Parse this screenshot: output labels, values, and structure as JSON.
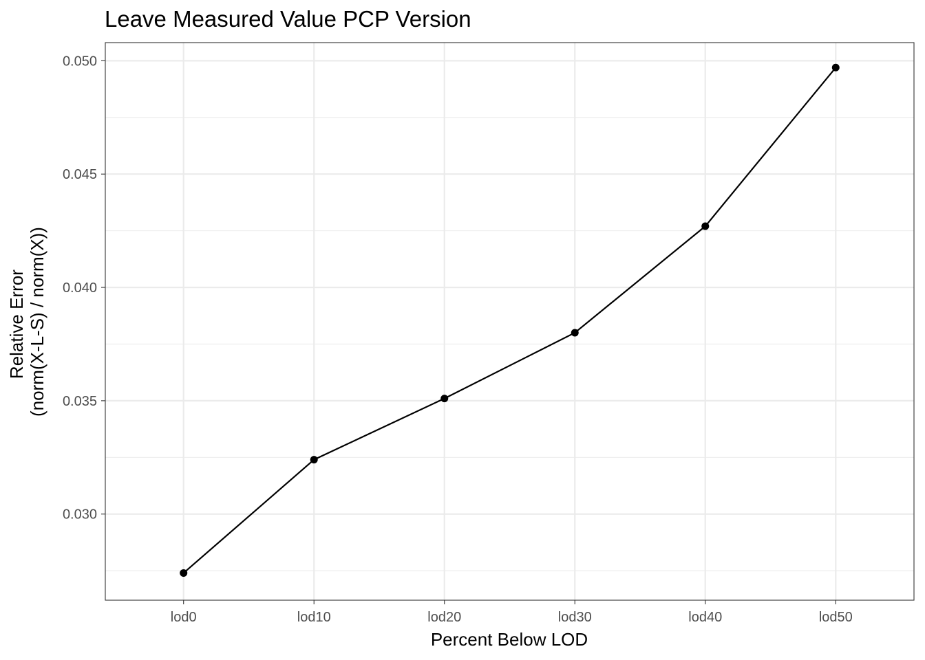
{
  "chart_data": {
    "type": "line",
    "title": "Leave Measured Value PCP Version",
    "xlabel": "Percent Below LOD",
    "ylabel_lines": [
      "Relative Error",
      "(norm(X-L-S) / norm(X))"
    ],
    "categories": [
      "lod0",
      "lod10",
      "lod20",
      "lod30",
      "lod40",
      "lod50"
    ],
    "series": [
      {
        "values": [
          0.0274,
          0.0324,
          0.0351,
          0.038,
          0.0427,
          0.0497
        ]
      }
    ],
    "ylim": [
      0.0262,
      0.0508
    ],
    "yticks": [
      0.03,
      0.035,
      0.04,
      0.045,
      0.05
    ],
    "ytick_labels": [
      "0.030",
      "0.035",
      "0.040",
      "0.045",
      "0.050"
    ],
    "grid": true,
    "legend": "none",
    "colors": {
      "line": "#000000",
      "grid": "#ebebeb",
      "text": "#4d4d4d"
    }
  }
}
